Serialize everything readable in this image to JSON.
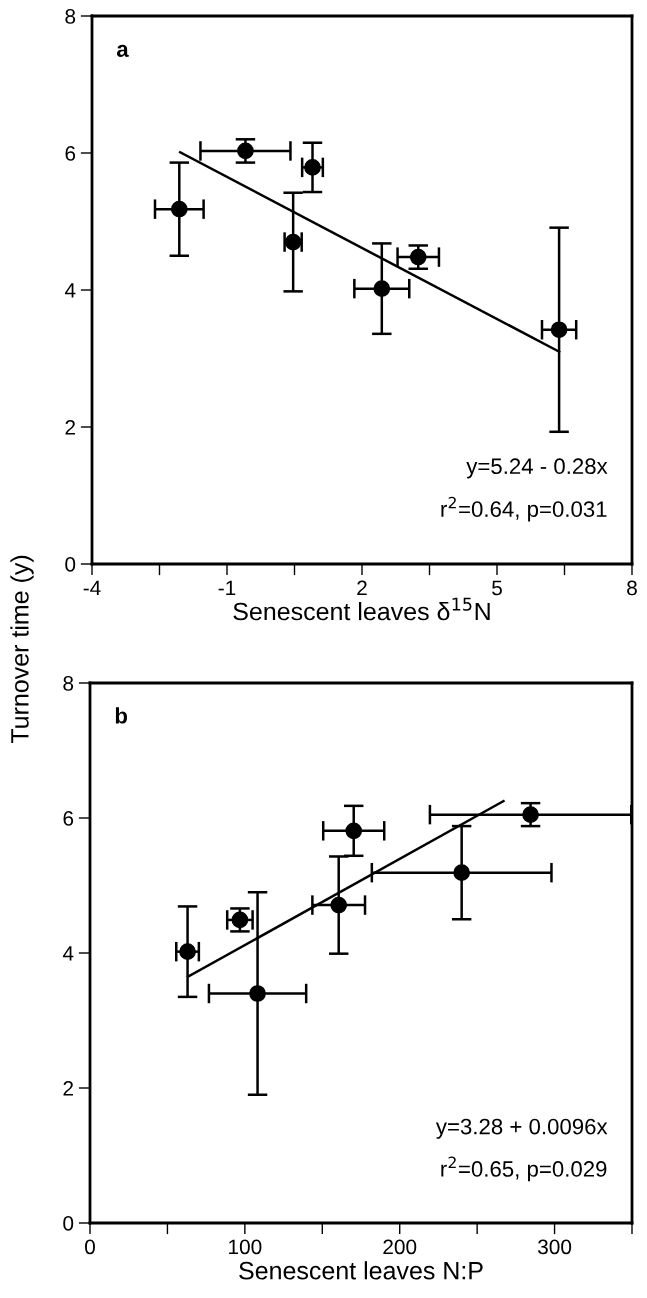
{
  "chart_data": [
    {
      "type": "scatter",
      "xlabel": "Senescent leaves δ$^{15}$N",
      "ylabel": "Turnover time (y)",
      "annotations": [
        "a",
        "y=5.24 - 0.28x",
        "r$^{2}$=0.64, p=0.031"
      ],
      "xlim": [
        -4,
        8
      ],
      "ylim": [
        0,
        8
      ],
      "xticks": [
        -4,
        {
          "value": -2.5,
          "label": null
        },
        -1,
        {
          "value": 0.5,
          "label": null
        },
        2,
        {
          "value": 3.5,
          "label": null
        },
        5,
        {
          "value": 6.5,
          "label": null
        },
        8
      ],
      "yticks": [
        0,
        2,
        4,
        6,
        8
      ],
      "grid": false,
      "legend": false,
      "series": [
        {
          "marker": "circle",
          "color": "#000000",
          "x": [
            -2.06,
            -0.59,
            0.9,
            0.47,
            2.44,
            3.25,
            6.38
          ],
          "values": [
            5.18,
            6.03,
            5.79,
            4.7,
            4.02,
            4.48,
            3.42
          ],
          "errors": [
            0.68,
            0.17,
            0.36,
            0.72,
            0.66,
            0.17,
            1.49
          ],
          "xerrors": [
            0.54,
            1.0,
            0.23,
            0.19,
            0.61,
            0.46,
            0.38
          ]
        },
        {
          "type": "line",
          "marker": "none",
          "color": "#000000",
          "x": [
            -2.04,
            6.38
          ],
          "values": [
            6.01,
            3.1
          ]
        }
      ]
    },
    {
      "type": "scatter",
      "xlabel": "Senescent leaves N:P",
      "annotations": [
        "b",
        "y=3.28 + 0.0096x",
        "r$^{2}$=0.65, p=0.029"
      ],
      "xlim": [
        0,
        350
      ],
      "ylim": [
        0,
        8
      ],
      "xticks": [
        0,
        {
          "value": 50,
          "label": null
        },
        100,
        {
          "value": 150,
          "label": null
        },
        200,
        {
          "value": 250,
          "label": null
        },
        300,
        {
          "value": 350,
          "label": null
        }
      ],
      "yticks": [
        0,
        2,
        4,
        6,
        8
      ],
      "grid": false,
      "legend": false,
      "series": [
        {
          "marker": "circle",
          "color": "#000000",
          "x": [
            63,
            96.8,
            108.2,
            160.6,
            170.3,
            240,
            284.5
          ],
          "values": [
            4.02,
            4.49,
            3.4,
            4.71,
            5.81,
            5.19,
            6.05
          ],
          "errors": [
            0.67,
            0.17,
            1.5,
            0.72,
            0.37,
            0.69,
            0.17
          ],
          "xerrors": [
            7.3,
            8.2,
            31.4,
            17,
            19.7,
            58,
            65
          ]
        },
        {
          "type": "line",
          "marker": "none",
          "color": "#000000",
          "x": [
            63.4,
            267
          ],
          "values": [
            3.65,
            6.25
          ]
        }
      ]
    }
  ]
}
